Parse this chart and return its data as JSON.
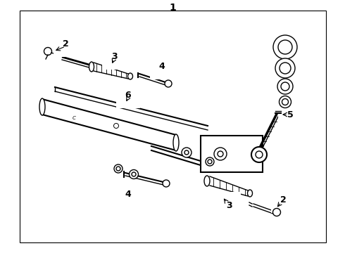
{
  "bg_color": "#ffffff",
  "lc": "#000000",
  "fig_width": 4.9,
  "fig_height": 3.6,
  "dpi": 100
}
